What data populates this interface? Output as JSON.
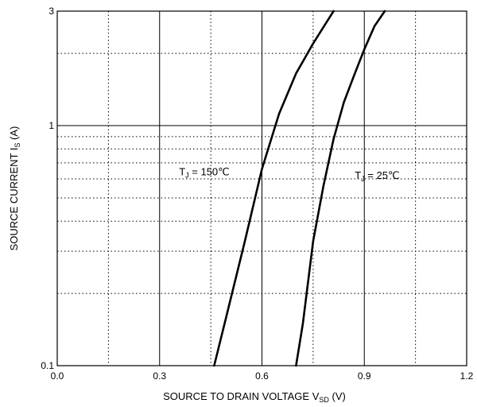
{
  "chart_data": {
    "type": "line",
    "xlabel": "SOURCE TO DRAIN VOLTAGE",
    "xlabel_symbol": "V",
    "xlabel_subscript": "SD",
    "xlabel_unit": "(V)",
    "ylabel": "SOURCE CURRENT",
    "ylabel_symbol": "I",
    "ylabel_subscript": "S",
    "ylabel_unit": "(A)",
    "xlim": [
      0.0,
      1.2
    ],
    "ylim": [
      0.1,
      3
    ],
    "yscale": "log",
    "grid": true,
    "x_major_ticks": [
      0.0,
      0.3,
      0.6,
      0.9,
      1.2
    ],
    "x_tick_labels": [
      "0.0",
      "0.3",
      "0.6",
      "0.9",
      "1.2"
    ],
    "x_minor_ticks": [
      0.15,
      0.45,
      0.75,
      1.05
    ],
    "y_major_ticks": [
      0.1,
      1,
      3
    ],
    "y_tick_labels": [
      "0.1",
      "1",
      "3"
    ],
    "y_minor_ticks": [
      0.2,
      0.3,
      0.4,
      0.5,
      0.6,
      0.7,
      0.8,
      0.9,
      2
    ],
    "series": [
      {
        "name": "T_J = 150℃",
        "label_main": "T",
        "label_sub": "J",
        "label_rest": " = 150℃",
        "color": "#000000",
        "x": [
          0.46,
          0.5,
          0.55,
          0.6,
          0.65,
          0.7,
          0.75,
          0.8,
          0.81
        ],
        "y": [
          0.1,
          0.17,
          0.33,
          0.66,
          1.12,
          1.65,
          2.2,
          2.85,
          3.0
        ]
      },
      {
        "name": "T_J = 25℃",
        "label_main": "T",
        "label_sub": "J",
        "label_rest": " = 25℃",
        "color": "#000000",
        "x": [
          0.7,
          0.72,
          0.75,
          0.78,
          0.81,
          0.84,
          0.87,
          0.9,
          0.93,
          0.96
        ],
        "y": [
          0.1,
          0.15,
          0.33,
          0.56,
          0.88,
          1.25,
          1.62,
          2.08,
          2.6,
          3.0
        ]
      }
    ]
  }
}
